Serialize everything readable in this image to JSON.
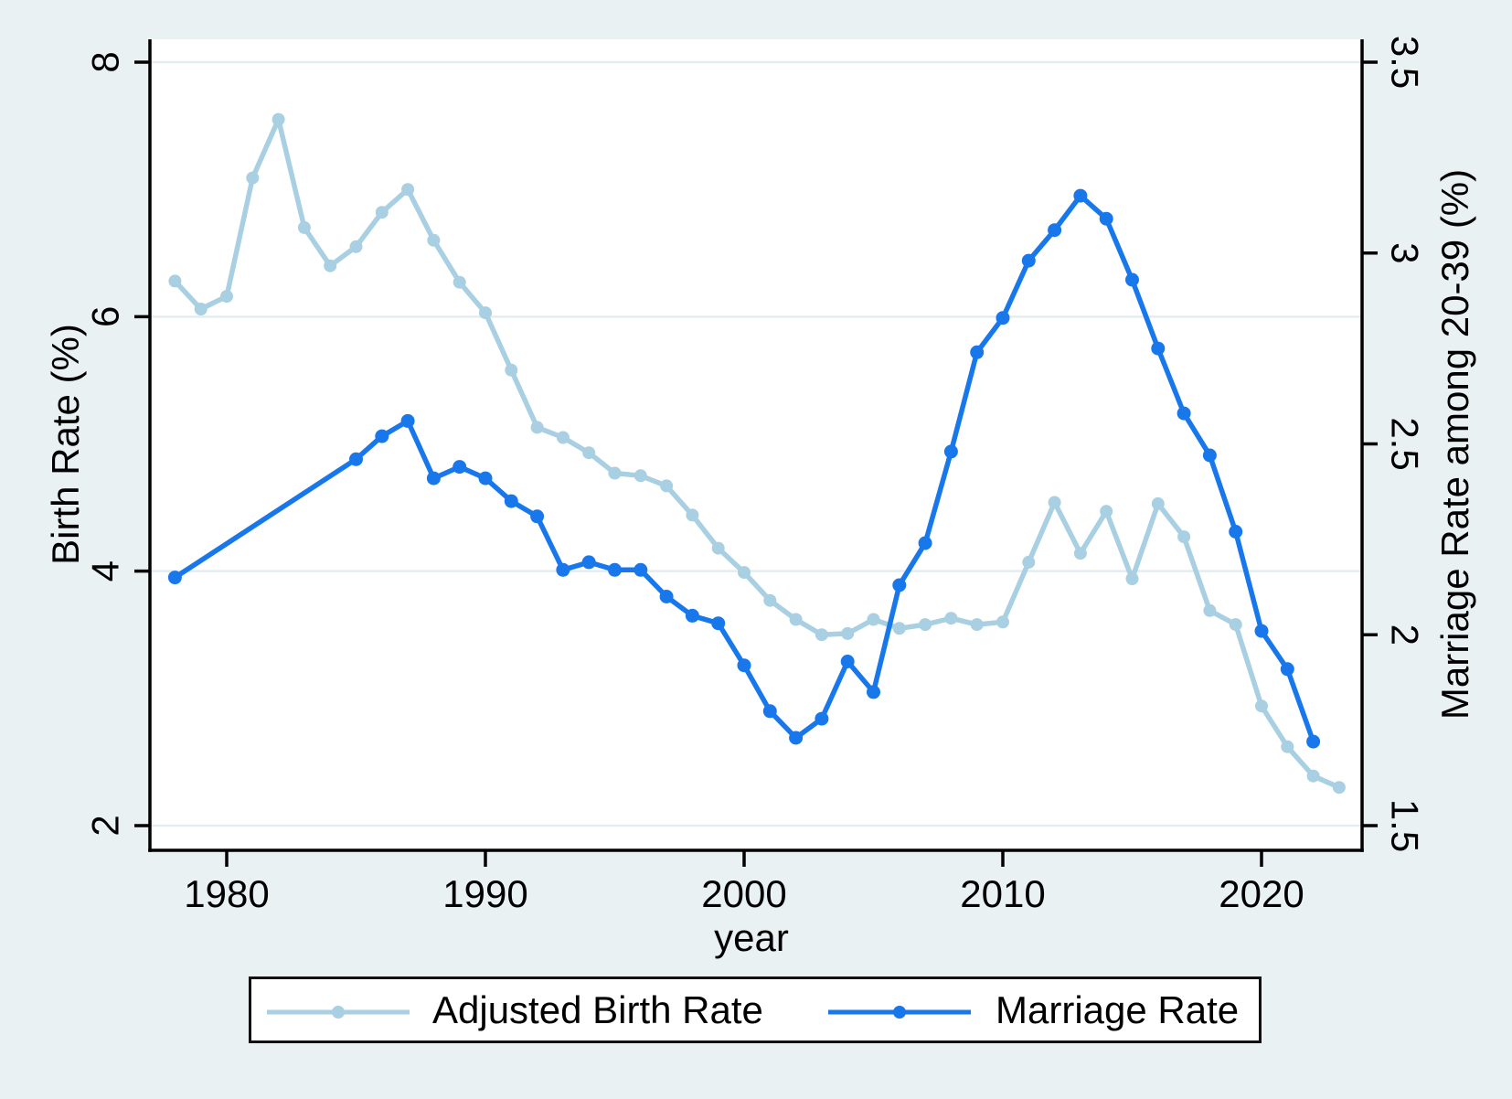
{
  "chart_data": {
    "type": "line",
    "title": "",
    "xlabel": "year",
    "ylabel_left": "Birth Rate (%)",
    "ylabel_right": "Marriage Rate among 20-39 (%)",
    "x_ticks": [
      "1980",
      "1990",
      "2000",
      "2010",
      "2020"
    ],
    "x_tick_years": [
      1980,
      1990,
      2000,
      2010,
      2020
    ],
    "y_left_ticks": [
      "8",
      "6",
      "4",
      "2"
    ],
    "y_left_tick_values": [
      8,
      6,
      4,
      2
    ],
    "y_left_range": [
      1.75,
      8.35
    ],
    "y_right_ticks": [
      "3.5",
      "3",
      "2.5",
      "2",
      "1.5"
    ],
    "y_right_tick_values": [
      3.5,
      3,
      2.5,
      2,
      1.5
    ],
    "y_right_range": [
      1.42,
      3.62
    ],
    "x_range": [
      1977,
      2024
    ],
    "grid": true,
    "legend_position": "bottom",
    "colors": {
      "background": "#e9f1f3",
      "plot_background": "#ffffff",
      "grid": "#e2edf2",
      "axis": "#000000"
    },
    "series": [
      {
        "name": "Adjusted Birth Rate",
        "axis": "left",
        "color": "#a8cfe2",
        "x": [
          1978,
          1979,
          1980,
          1981,
          1982,
          1983,
          1984,
          1985,
          1986,
          1987,
          1988,
          1989,
          1990,
          1991,
          1992,
          1993,
          1994,
          1995,
          1996,
          1997,
          1998,
          1999,
          2000,
          2001,
          2002,
          2003,
          2004,
          2005,
          2006,
          2007,
          2008,
          2009,
          2010,
          2011,
          2012,
          2013,
          2014,
          2015,
          2016,
          2017,
          2018,
          2019,
          2020,
          2021,
          2022,
          2023
        ],
        "y": [
          6.28,
          6.06,
          6.16,
          7.09,
          7.55,
          6.7,
          6.4,
          6.55,
          6.82,
          7.0,
          6.6,
          6.27,
          6.03,
          5.58,
          5.13,
          5.05,
          4.93,
          4.77,
          4.75,
          4.67,
          4.44,
          4.18,
          3.99,
          3.77,
          3.62,
          3.5,
          3.51,
          3.62,
          3.55,
          3.58,
          3.63,
          3.58,
          3.6,
          4.07,
          4.54,
          4.14,
          4.47,
          3.94,
          4.53,
          4.27,
          3.69,
          3.58,
          2.94,
          2.62,
          2.39,
          2.3
        ]
      },
      {
        "name": "Marriage Rate",
        "axis": "right",
        "color": "#1878eb",
        "x": [
          1978,
          1985,
          1986,
          1987,
          1988,
          1989,
          1990,
          1991,
          1992,
          1993,
          1994,
          1995,
          1996,
          1997,
          1998,
          1999,
          2000,
          2001,
          2002,
          2003,
          2004,
          2005,
          2006,
          2007,
          2008,
          2009,
          2010,
          2011,
          2012,
          2013,
          2014,
          2015,
          2016,
          2017,
          2018,
          2019,
          2020,
          2021,
          2022
        ],
        "y": [
          2.15,
          2.46,
          2.52,
          2.56,
          2.41,
          2.44,
          2.41,
          2.35,
          2.31,
          2.17,
          2.19,
          2.17,
          2.17,
          2.1,
          2.05,
          2.03,
          1.92,
          1.8,
          1.73,
          1.78,
          1.93,
          1.85,
          2.13,
          2.24,
          2.48,
          2.74,
          2.83,
          2.98,
          3.06,
          3.15,
          3.09,
          2.93,
          2.75,
          2.58,
          2.47,
          2.27,
          2.01,
          1.91,
          1.72
        ]
      }
    ]
  }
}
